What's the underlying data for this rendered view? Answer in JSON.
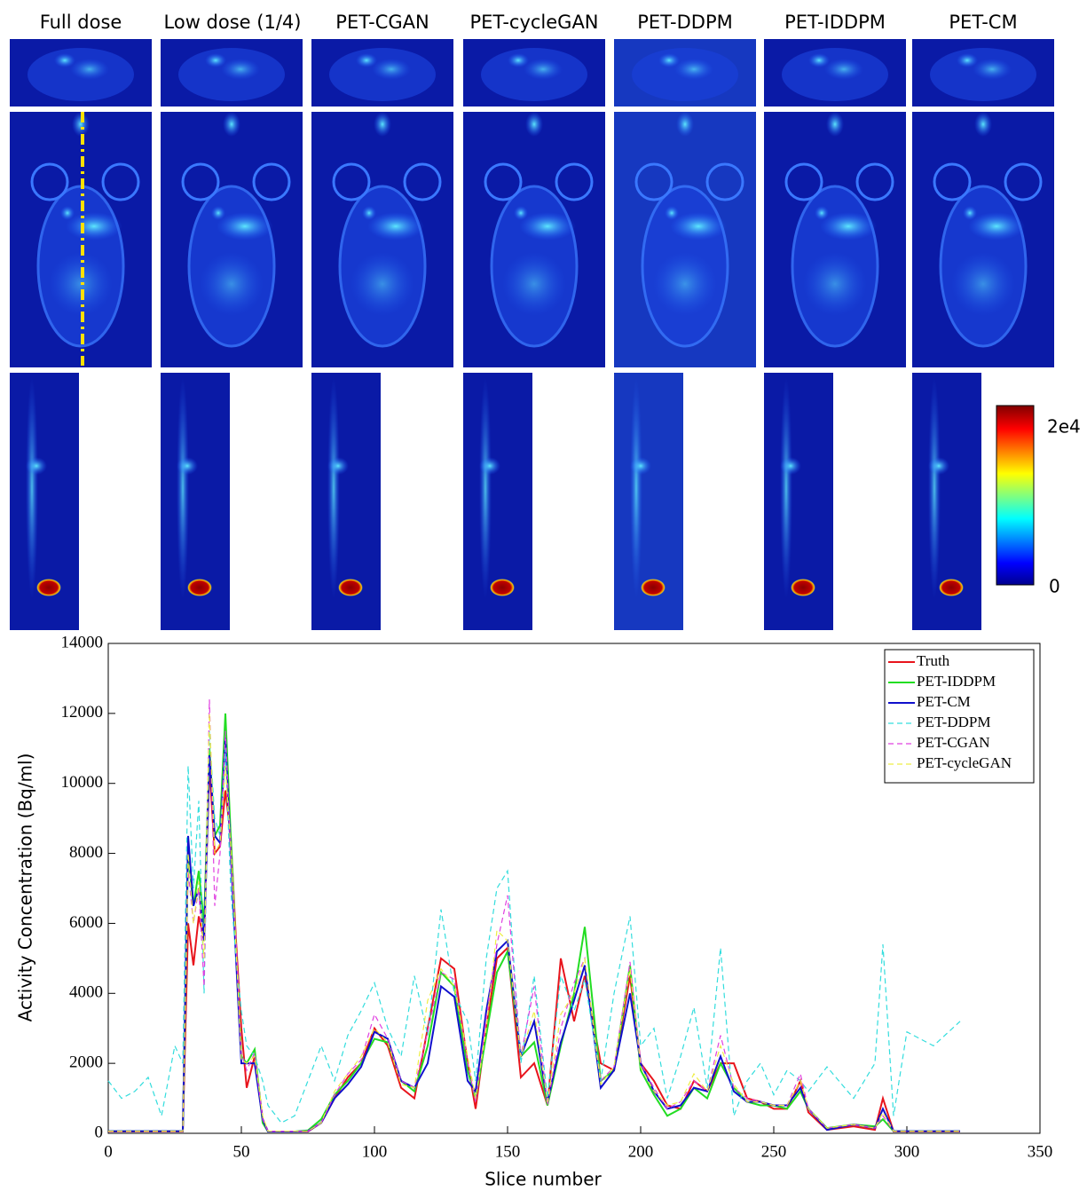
{
  "images": {
    "titles": [
      "Full dose",
      "Low dose (1/4)",
      "PET-CGAN",
      "PET-cycleGAN",
      "PET-DDPM",
      "PET-IDDPM",
      "PET-CM"
    ],
    "colorbar": {
      "max_label": "2e4",
      "min_label": "0"
    }
  },
  "chart_data": {
    "type": "line",
    "xlabel": "Slice number",
    "ylabel": "Activity Concentration (Bq/ml)",
    "xlim": [
      0,
      350
    ],
    "ylim": [
      0,
      14000
    ],
    "xticks": [
      0,
      50,
      100,
      150,
      200,
      250,
      300,
      350
    ],
    "yticks": [
      0,
      2000,
      4000,
      6000,
      8000,
      10000,
      12000,
      14000
    ],
    "legend": "upper right",
    "x": [
      0,
      5,
      10,
      15,
      20,
      25,
      28,
      30,
      32,
      34,
      36,
      38,
      40,
      42,
      44,
      46,
      48,
      50,
      52,
      55,
      58,
      60,
      65,
      70,
      75,
      80,
      85,
      90,
      95,
      100,
      105,
      110,
      115,
      120,
      125,
      130,
      135,
      138,
      142,
      146,
      150,
      155,
      160,
      165,
      170,
      175,
      179,
      185,
      190,
      196,
      200,
      205,
      210,
      215,
      220,
      225,
      230,
      235,
      240,
      245,
      250,
      255,
      260,
      263,
      270,
      280,
      288,
      291,
      295,
      300,
      310,
      320
    ],
    "series": [
      {
        "name": "Truth",
        "color": "#e8141c",
        "dashed": false,
        "values": [
          50,
          50,
          50,
          50,
          50,
          50,
          50,
          6000,
          4800,
          6200,
          5500,
          10500,
          8000,
          8200,
          9800,
          8500,
          5500,
          3000,
          1300,
          2200,
          400,
          50,
          50,
          50,
          50,
          300,
          1000,
          1600,
          2000,
          3000,
          2500,
          1300,
          1000,
          3000,
          5000,
          4700,
          2000,
          700,
          3000,
          5000,
          5300,
          1600,
          2000,
          800,
          5000,
          3200,
          4500,
          2000,
          1800,
          4500,
          2000,
          1500,
          800,
          700,
          1500,
          1200,
          2000,
          2000,
          1000,
          900,
          700,
          700,
          1500,
          600,
          100,
          200,
          100,
          1000,
          50,
          50,
          50,
          50
        ]
      },
      {
        "name": "PET-IDDPM",
        "color": "#22dd22",
        "dashed": false,
        "values": [
          60,
          60,
          60,
          60,
          60,
          60,
          60,
          8000,
          6500,
          7500,
          6000,
          11000,
          8500,
          8800,
          12000,
          8500,
          5200,
          2200,
          2000,
          2400,
          300,
          50,
          50,
          50,
          80,
          400,
          1100,
          1500,
          2000,
          2700,
          2600,
          1500,
          1200,
          2500,
          4600,
          4200,
          1800,
          1000,
          2800,
          4600,
          5200,
          2200,
          2600,
          800,
          2500,
          4000,
          5900,
          1500,
          1800,
          4800,
          1800,
          1100,
          500,
          700,
          1300,
          1000,
          2000,
          1300,
          900,
          800,
          800,
          700,
          1200,
          700,
          150,
          250,
          200,
          400,
          60,
          60,
          60,
          60
        ]
      },
      {
        "name": "PET-CM",
        "color": "#1010cc",
        "dashed": false,
        "values": [
          60,
          60,
          60,
          60,
          60,
          60,
          60,
          8500,
          6500,
          7000,
          5500,
          10800,
          8500,
          8300,
          11300,
          8000,
          5000,
          2000,
          2000,
          2000,
          400,
          50,
          50,
          50,
          60,
          300,
          1000,
          1400,
          1900,
          2900,
          2700,
          1500,
          1300,
          2000,
          4200,
          3900,
          1500,
          1200,
          3500,
          5200,
          5500,
          2200,
          3200,
          900,
          2600,
          3800,
          4800,
          1300,
          1800,
          4000,
          2000,
          1200,
          700,
          800,
          1300,
          1200,
          2200,
          1200,
          900,
          900,
          800,
          800,
          1300,
          700,
          100,
          250,
          150,
          700,
          60,
          60,
          60,
          60
        ]
      },
      {
        "name": "PET-DDPM",
        "color": "#33dddd",
        "dashed": true,
        "values": [
          1500,
          1000,
          1200,
          1600,
          500,
          2500,
          2000,
          10500,
          7000,
          9500,
          4000,
          11500,
          9000,
          8500,
          11000,
          7000,
          5000,
          3500,
          2500,
          2200,
          1500,
          800,
          300,
          500,
          1500,
          2500,
          1500,
          2800,
          3500,
          4300,
          3000,
          2200,
          4500,
          2800,
          6400,
          4000,
          3200,
          1500,
          5000,
          7000,
          7500,
          2000,
          4500,
          1000,
          4500,
          3500,
          4400,
          1500,
          4000,
          6200,
          2500,
          3000,
          1000,
          2200,
          3600,
          1300,
          5300,
          500,
          1500,
          2000,
          1100,
          1800,
          1500,
          1200,
          1900,
          1000,
          2000,
          5400,
          500,
          2900,
          2500,
          3200
        ]
      },
      {
        "name": "PET-CGAN",
        "color": "#e040e0",
        "dashed": true,
        "values": [
          50,
          50,
          50,
          50,
          50,
          50,
          50,
          7500,
          6000,
          7000,
          4200,
          12400,
          6500,
          8000,
          11500,
          8000,
          5500,
          2300,
          1800,
          2300,
          400,
          60,
          60,
          60,
          60,
          300,
          1100,
          1700,
          2100,
          3400,
          2700,
          1500,
          1300,
          2900,
          4600,
          4400,
          2000,
          900,
          3300,
          5400,
          6800,
          2200,
          4200,
          800,
          3000,
          4300,
          5000,
          1500,
          1900,
          4900,
          2000,
          1300,
          700,
          900,
          1500,
          1200,
          2800,
          1300,
          1000,
          900,
          800,
          800,
          1700,
          700,
          150,
          250,
          150,
          500,
          60,
          60,
          60,
          60
        ]
      },
      {
        "name": "PET-cycleGAN",
        "color": "#eeee44",
        "dashed": true,
        "values": [
          60,
          60,
          60,
          60,
          60,
          60,
          60,
          8000,
          6000,
          7200,
          5000,
          12000,
          8000,
          8300,
          10500,
          8200,
          5300,
          2100,
          2000,
          2200,
          500,
          60,
          60,
          60,
          60,
          300,
          1200,
          1700,
          2200,
          3000,
          2600,
          1400,
          1300,
          3800,
          4700,
          4200,
          2200,
          1000,
          3000,
          5800,
          5500,
          2200,
          3500,
          900,
          3400,
          4000,
          5000,
          1400,
          1900,
          4700,
          1900,
          1200,
          800,
          900,
          1700,
          1200,
          2500,
          1400,
          900,
          900,
          800,
          800,
          1500,
          700,
          150,
          250,
          150,
          600,
          60,
          60,
          60,
          60
        ]
      }
    ]
  }
}
